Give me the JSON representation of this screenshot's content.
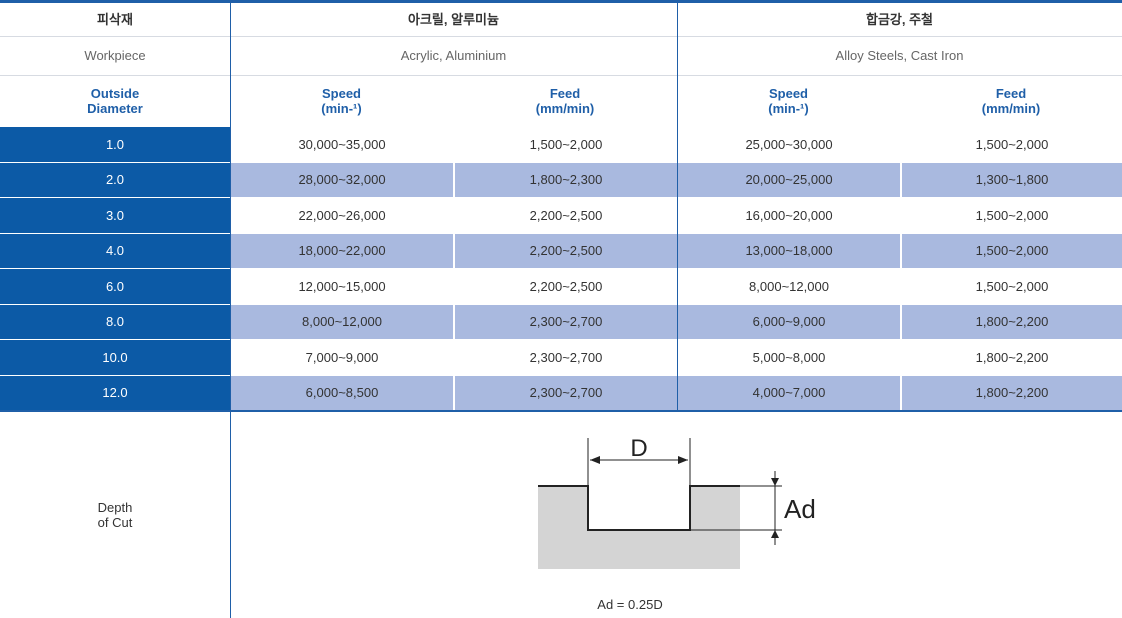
{
  "header": {
    "korean": {
      "label": "피삭재",
      "group1": "아크릴, 알루미늄",
      "group2": "합금강, 주철"
    },
    "english": {
      "label": "Workpiece",
      "group1": "Acrylic, Aluminium",
      "group2": "Alloy Steels, Cast Iron"
    },
    "columns": {
      "diameter": [
        "Outside",
        "Diameter"
      ],
      "speed": [
        "Speed",
        "(min-¹)"
      ],
      "feed": [
        "Feed",
        "(mm/min)"
      ]
    }
  },
  "rows": [
    {
      "diameter": "1.0",
      "speed1": "30,000~35,000",
      "feed1": "1,500~2,000",
      "speed2": "25,000~30,000",
      "feed2": "1,500~2,000"
    },
    {
      "diameter": "2.0",
      "speed1": "28,000~32,000",
      "feed1": "1,800~2,300",
      "speed2": "20,000~25,000",
      "feed2": "1,300~1,800"
    },
    {
      "diameter": "3.0",
      "speed1": "22,000~26,000",
      "feed1": "2,200~2,500",
      "speed2": "16,000~20,000",
      "feed2": "1,500~2,000"
    },
    {
      "diameter": "4.0",
      "speed1": "18,000~22,000",
      "feed1": "2,200~2,500",
      "speed2": "13,000~18,000",
      "feed2": "1,500~2,000"
    },
    {
      "diameter": "6.0",
      "speed1": "12,000~15,000",
      "feed1": "2,200~2,500",
      "speed2": "8,000~12,000",
      "feed2": "1,500~2,000"
    },
    {
      "diameter": "8.0",
      "speed1": "8,000~12,000",
      "feed1": "2,300~2,700",
      "speed2": "6,000~9,000",
      "feed2": "1,800~2,200"
    },
    {
      "diameter": "10.0",
      "speed1": "7,000~9,000",
      "feed1": "2,300~2,700",
      "speed2": "5,000~8,000",
      "feed2": "1,800~2,200"
    },
    {
      "diameter": "12.0",
      "speed1": "6,000~8,500",
      "feed1": "2,300~2,700",
      "speed2": "4,000~7,000",
      "feed2": "1,800~2,200"
    }
  ],
  "depth": {
    "label": [
      "Depth",
      "of Cut"
    ],
    "diagram": {
      "width_label": "D",
      "depth_label": "Ad"
    },
    "formula": "Ad = 0.25D"
  },
  "colors": {
    "accent": "#0c5aa6",
    "alt_row": "#a9b9df",
    "ground": "#d4d4d4"
  }
}
